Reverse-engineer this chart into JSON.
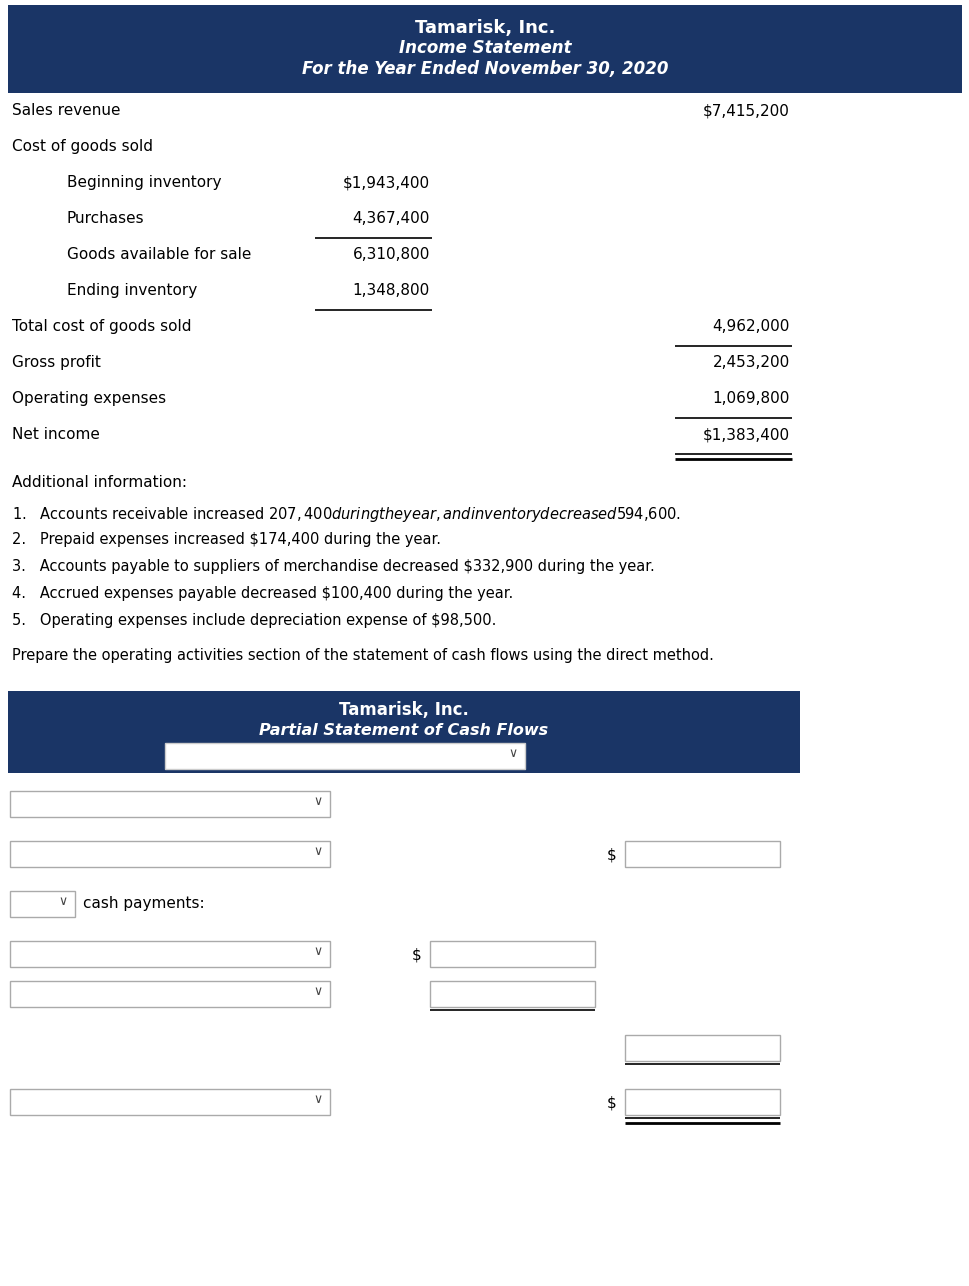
{
  "title1": "Tamarisk, Inc.",
  "title2": "Income Statement",
  "title3": "For the Year Ended November 30, 2020",
  "header_bg": "#1a3566",
  "body_bg": "#ffffff",
  "rows": [
    {
      "label": "Sales revenue",
      "c1": "",
      "c2": "$7,415,200",
      "ind": 0,
      "lb1": false,
      "lb2": false,
      "dbl": false
    },
    {
      "label": "Cost of goods sold",
      "c1": "",
      "c2": "",
      "ind": 0,
      "lb1": false,
      "lb2": false,
      "dbl": false
    },
    {
      "label": "Beginning inventory",
      "c1": "$1,943,400",
      "c2": "",
      "ind": 1,
      "lb1": false,
      "lb2": false,
      "dbl": false
    },
    {
      "label": "Purchases",
      "c1": "4,367,400",
      "c2": "",
      "ind": 1,
      "lb1": true,
      "lb2": false,
      "dbl": false
    },
    {
      "label": "Goods available for sale",
      "c1": "6,310,800",
      "c2": "",
      "ind": 1,
      "lb1": false,
      "lb2": false,
      "dbl": false
    },
    {
      "label": "Ending inventory",
      "c1": "1,348,800",
      "c2": "",
      "ind": 1,
      "lb1": true,
      "lb2": false,
      "dbl": false
    },
    {
      "label": "Total cost of goods sold",
      "c1": "",
      "c2": "4,962,000",
      "ind": 0,
      "lb1": false,
      "lb2": true,
      "dbl": false
    },
    {
      "label": "Gross profit",
      "c1": "",
      "c2": "2,453,200",
      "ind": 0,
      "lb1": false,
      "lb2": false,
      "dbl": false
    },
    {
      "label": "Operating expenses",
      "c1": "",
      "c2": "1,069,800",
      "ind": 0,
      "lb1": false,
      "lb2": true,
      "dbl": false
    },
    {
      "label": "Net income",
      "c1": "",
      "c2": "$1,383,400",
      "ind": 0,
      "lb1": false,
      "lb2": true,
      "dbl": true
    }
  ],
  "additional_title": "Additional information:",
  "additional_items": [
    "1.   Accounts receivable increased $207,400 during the year, and inventory decreased $594,600.",
    "2.   Prepaid expenses increased $174,400 during the year.",
    "3.   Accounts payable to suppliers of merchandise decreased $332,900 during the year.",
    "4.   Accrued expenses payable decreased $100,400 during the year.",
    "5.   Operating expenses include depreciation expense of $98,500."
  ],
  "prepare_text": "Prepare the operating activities section of the statement of cash flows using the direct method.",
  "cf_title1": "Tamarisk, Inc.",
  "cf_title2": "Partial Statement of Cash Flows"
}
